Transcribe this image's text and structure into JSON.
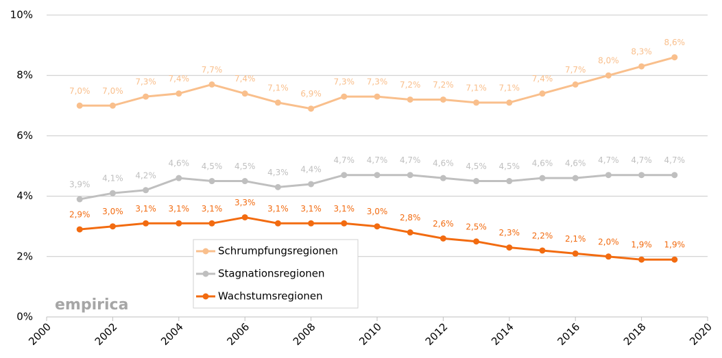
{
  "chart_data": {
    "type": "line",
    "x": [
      2001,
      2002,
      2003,
      2004,
      2005,
      2006,
      2007,
      2008,
      2009,
      2010,
      2011,
      2012,
      2013,
      2014,
      2015,
      2016,
      2017,
      2018,
      2019
    ],
    "series": [
      {
        "name": "Schrumpfungsregionen",
        "color": "#f9bf8c",
        "values": [
          7.0,
          7.0,
          7.3,
          7.4,
          7.7,
          7.4,
          7.1,
          6.9,
          7.3,
          7.3,
          7.2,
          7.2,
          7.1,
          7.1,
          7.4,
          7.7,
          8.0,
          8.3,
          8.6
        ],
        "value_labels": [
          "7,0%",
          "7,0%",
          "7,3%",
          "7,4%",
          "7,7%",
          "7,4%",
          "7,1%",
          "6,9%",
          "7,3%",
          "7,3%",
          "7,2%",
          "7,2%",
          "7,1%",
          "7,1%",
          "7,4%",
          "7,7%",
          "8,0%",
          "8,3%",
          "8,6%"
        ]
      },
      {
        "name": "Stagnationsregionen",
        "color": "#bfbfbf",
        "values": [
          3.9,
          4.1,
          4.2,
          4.6,
          4.5,
          4.5,
          4.3,
          4.4,
          4.7,
          4.7,
          4.7,
          4.6,
          4.5,
          4.5,
          4.6,
          4.6,
          4.7,
          4.7,
          4.7
        ],
        "value_labels": [
          "3,9%",
          "4,1%",
          "4,2%",
          "4,6%",
          "4,5%",
          "4,5%",
          "4,3%",
          "4,4%",
          "4,7%",
          "4,7%",
          "4,7%",
          "4,6%",
          "4,5%",
          "4,5%",
          "4,6%",
          "4,6%",
          "4,7%",
          "4,7%",
          "4,7%"
        ]
      },
      {
        "name": "Wachstumsregionen",
        "color": "#f26b10",
        "values": [
          2.9,
          3.0,
          3.1,
          3.1,
          3.1,
          3.3,
          3.1,
          3.1,
          3.1,
          3.0,
          2.8,
          2.6,
          2.5,
          2.3,
          2.2,
          2.1,
          2.0,
          1.9,
          1.9
        ],
        "value_labels": [
          "2,9%",
          "3,0%",
          "3,1%",
          "3,1%",
          "3,1%",
          "3,3%",
          "3,1%",
          "3,1%",
          "3,1%",
          "3,0%",
          "2,8%",
          "2,6%",
          "2,5%",
          "2,3%",
          "2,2%",
          "2,1%",
          "2,0%",
          "1,9%",
          "1,9%"
        ]
      }
    ],
    "xlim": [
      2000,
      2020
    ],
    "xticks": [
      2000,
      2002,
      2004,
      2006,
      2008,
      2010,
      2012,
      2014,
      2016,
      2018,
      2020
    ],
    "ylim": [
      0,
      10
    ],
    "yticks": [
      {
        "value": 0,
        "label": "0%"
      },
      {
        "value": 2,
        "label": "2%"
      },
      {
        "value": 4,
        "label": "4%"
      },
      {
        "value": 6,
        "label": "6%"
      },
      {
        "value": 8,
        "label": "8%"
      },
      {
        "value": 10,
        "label": "10%"
      }
    ],
    "grid": true,
    "legend": "center",
    "annotations": [
      "empirica"
    ]
  }
}
